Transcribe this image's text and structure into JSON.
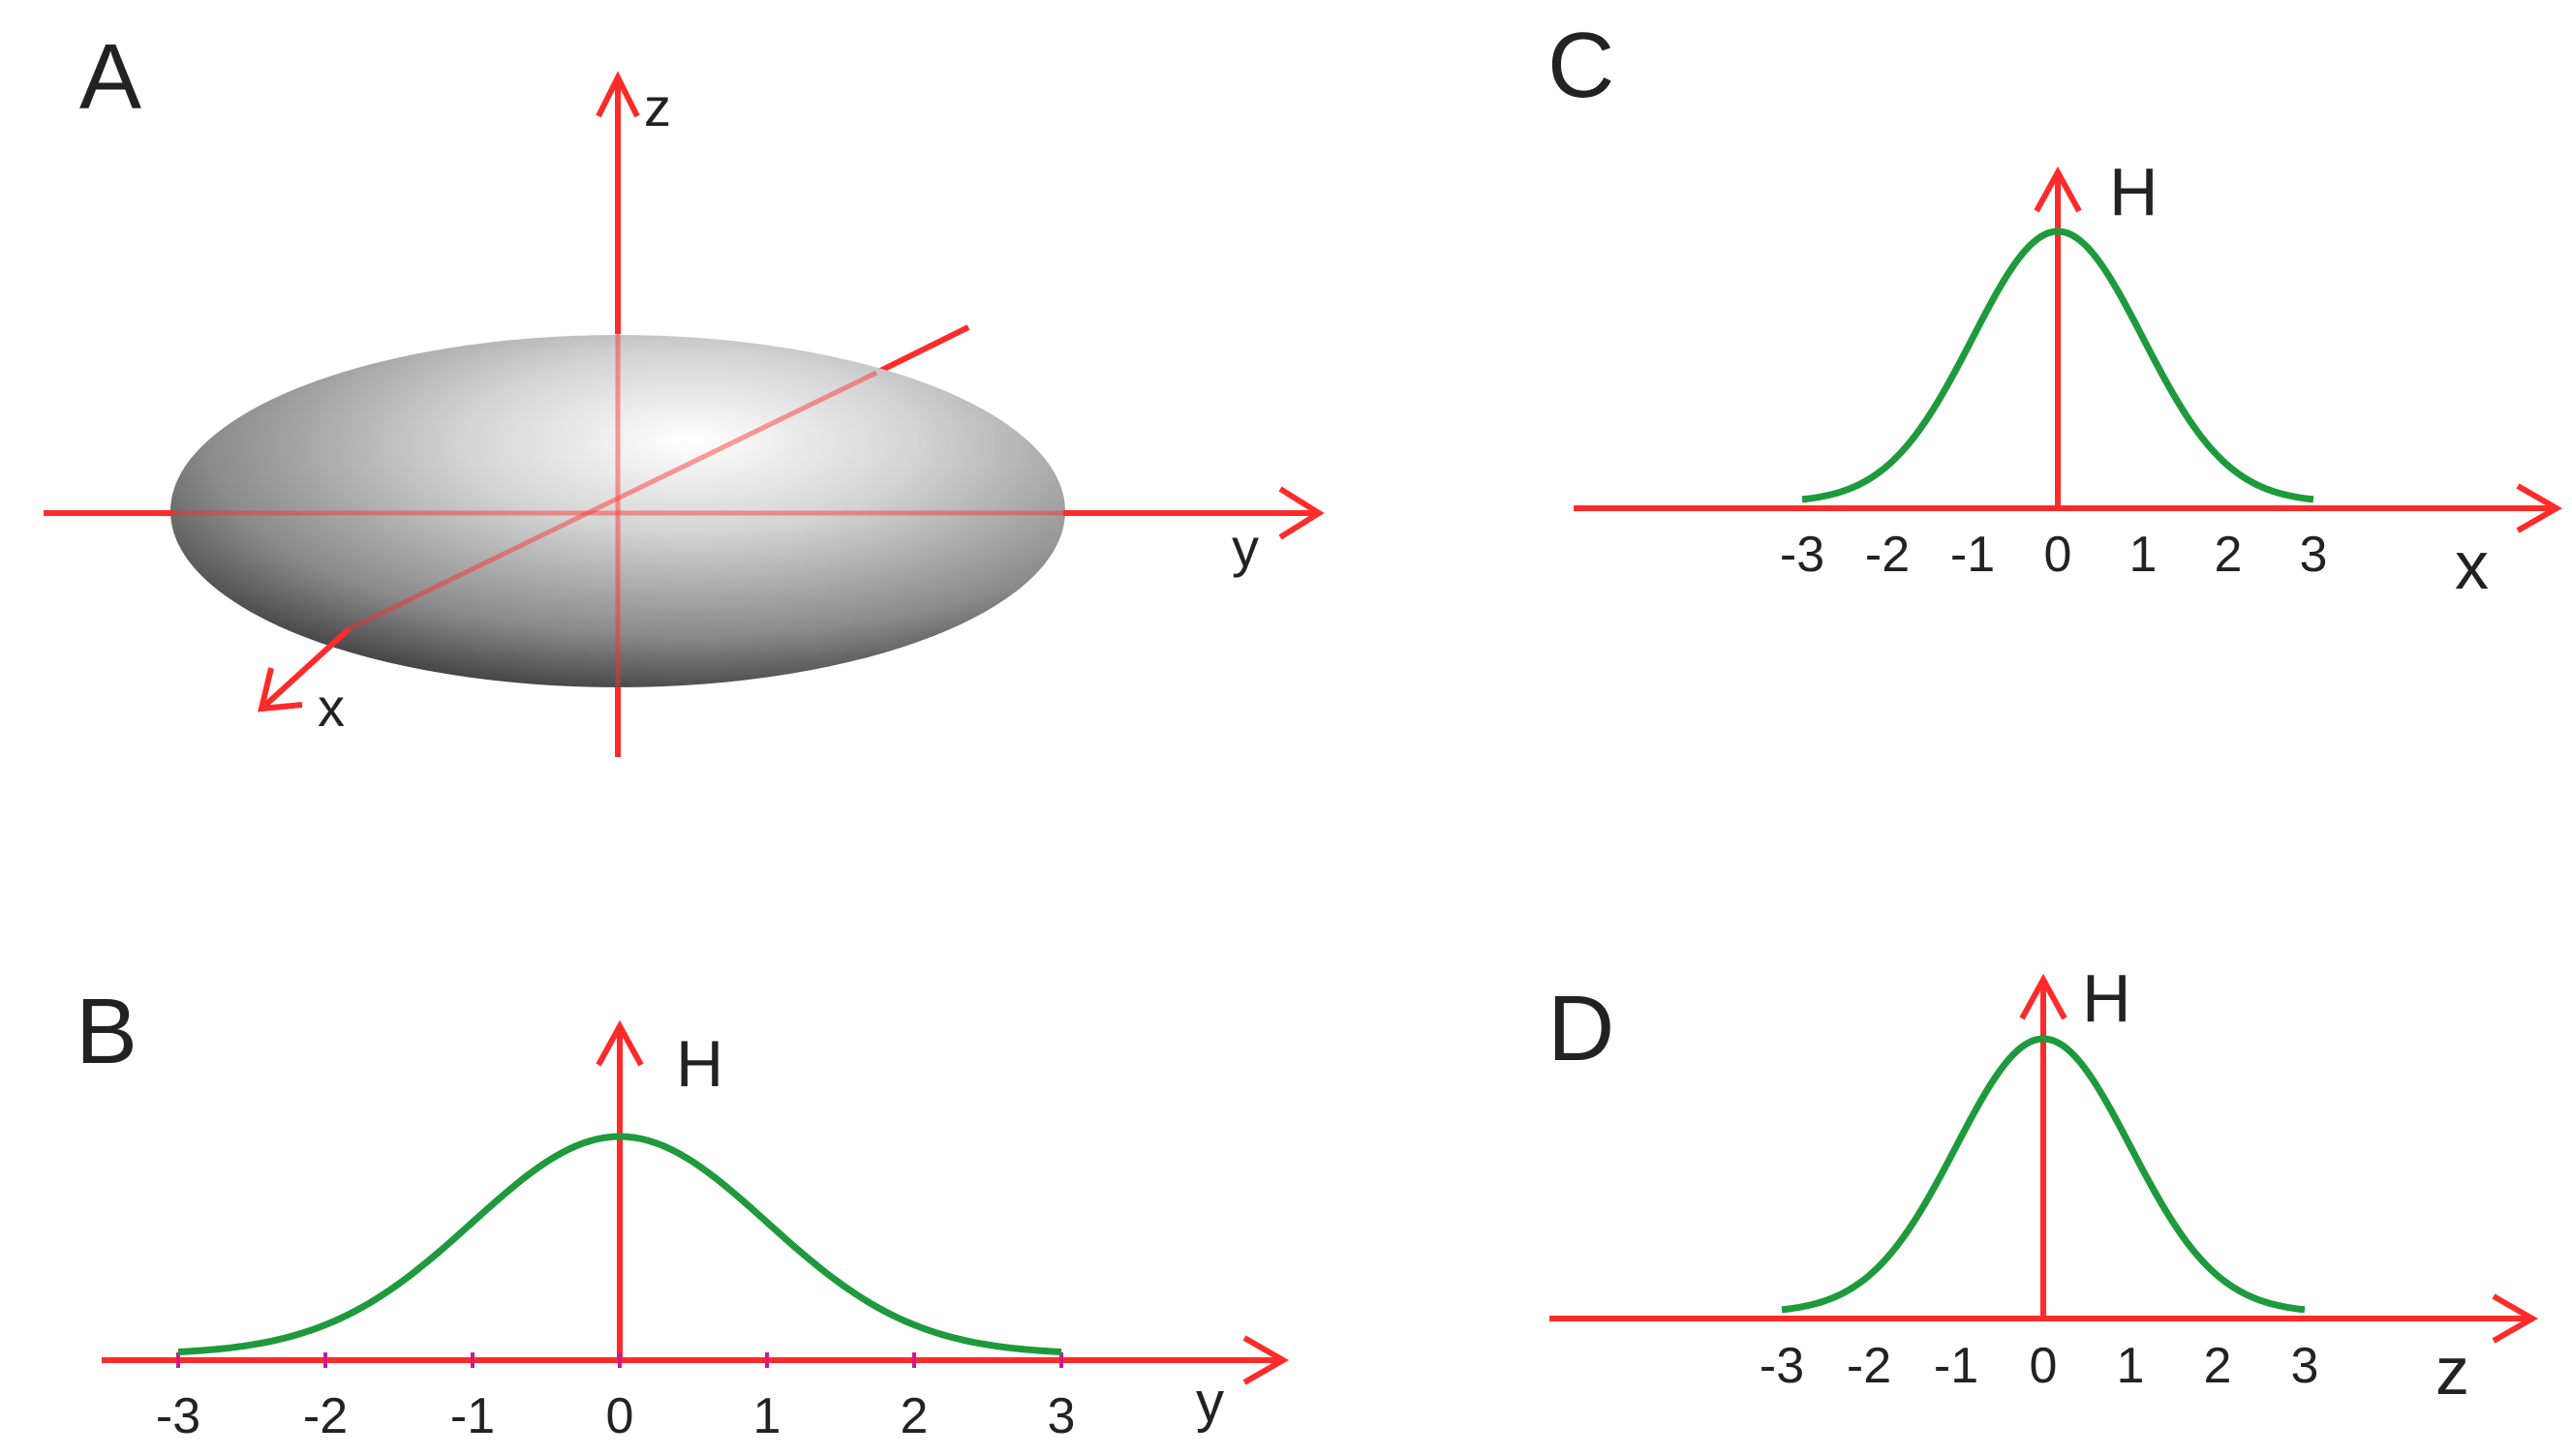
{
  "colors": {
    "axis": "#ff2b2b",
    "curve": "#1e9a3c",
    "ellipsoid_dark": "#3a3a3a",
    "ellipsoid_light": "#ffffff"
  },
  "panels": {
    "a": {
      "letter": "A",
      "axes": {
        "z": "z",
        "y": "y",
        "x": "x"
      }
    },
    "b": {
      "letter": "B",
      "h_label": "H",
      "axis_label": "y",
      "ticks": [
        "-3",
        "-2",
        "-1",
        "0",
        "1",
        "2",
        "3"
      ]
    },
    "c": {
      "letter": "C",
      "h_label": "H",
      "axis_label": "x",
      "ticks": [
        "-3",
        "-2",
        "-1",
        "0",
        "1",
        "2",
        "3"
      ]
    },
    "d": {
      "letter": "D",
      "h_label": "H",
      "axis_label": "z",
      "ticks": [
        "-3",
        "-2",
        "-1",
        "0",
        "1",
        "2",
        "3"
      ]
    }
  }
}
